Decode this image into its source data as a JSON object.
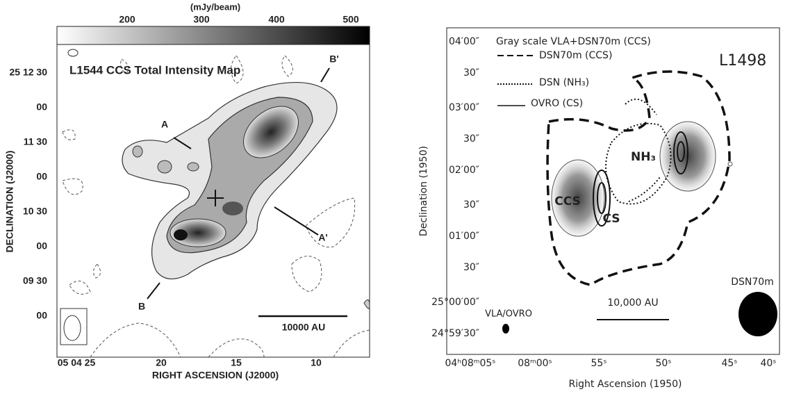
{
  "left_panel": {
    "colorbar_label": "(mJy/beam)",
    "colorbar_ticks": [
      "200",
      "300",
      "400",
      "500"
    ],
    "title": "L1544 CCS Total Intensity Map",
    "cut_labels": [
      "A",
      "A'",
      "B",
      "B'"
    ],
    "y_ticks": [
      "25 12 30",
      "00",
      "11 30",
      "00",
      "10 30",
      "00",
      "09 30",
      "00"
    ],
    "y_label": "DECLINATION (J2000)",
    "x_ticks": [
      "05 04 25",
      "20",
      "15",
      "10"
    ],
    "x_label": "RIGHT ASCENSION (J2000)",
    "scale_bar": "10000 AU"
  },
  "right_panel": {
    "legend": [
      "Gray scale  VLA+DSN70m (CCS)",
      "DSN70m (CCS)",
      "DSN (NH₃)",
      "OVRO (CS)"
    ],
    "source": "L1498",
    "y_ticks": [
      "04′00″",
      "30″",
      "03′00″",
      "30″",
      "02′00″",
      "30″",
      "01′00″",
      "30″",
      "25°00′00″",
      "24°59′30″"
    ],
    "y_label": "Declination  (1950)",
    "x_ticks": [
      "04ʰ08ᵐ05ˢ",
      "08ᵐ00ˢ",
      "55ˢ",
      "50ˢ",
      "45ˢ",
      "40ˢ"
    ],
    "x_label": "Right Ascension (1950)",
    "region_labels": [
      "CCS",
      "CS",
      "NH₃"
    ],
    "scale_bar": "10,000 AU",
    "beam_labels": [
      "VLA/OVRO",
      "DSN70m"
    ]
  }
}
